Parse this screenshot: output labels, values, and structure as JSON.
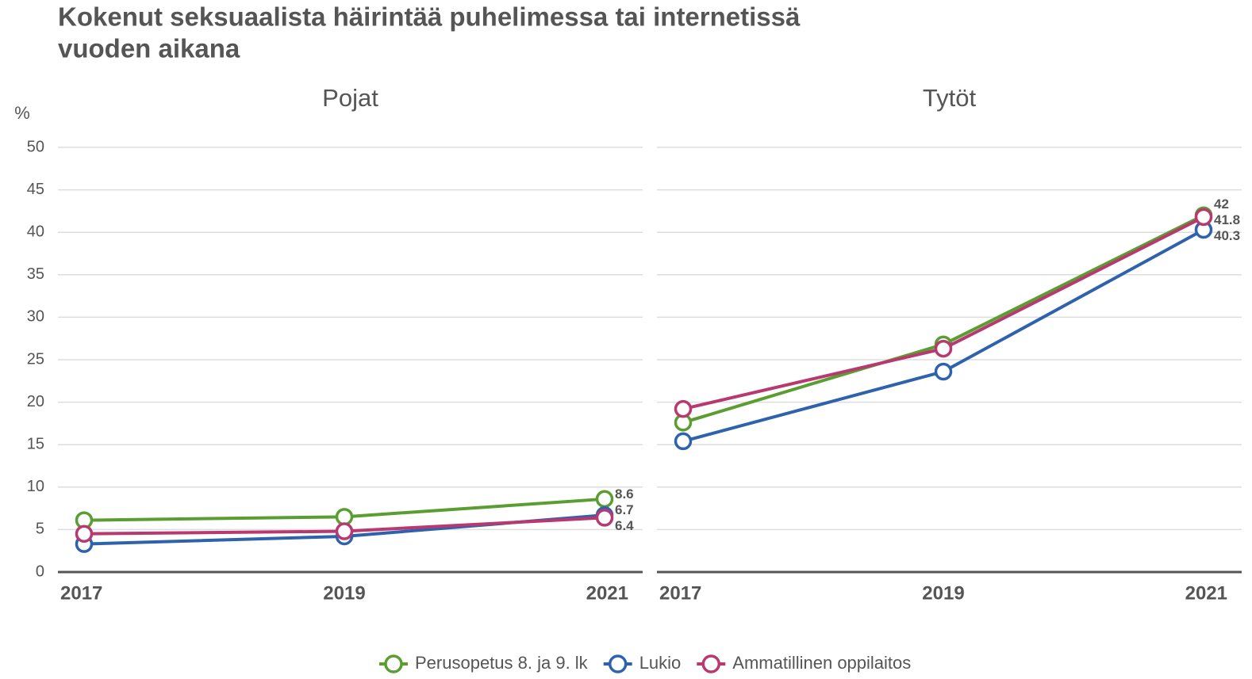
{
  "title": "Kokenut seksuaalista häirintää puhelimessa tai internetissä vuoden aikana",
  "chart_data": {
    "type": "line",
    "y_label": "%",
    "x": [
      2017,
      2019,
      2021
    ],
    "ylim": [
      0,
      50
    ],
    "yticks": [
      0,
      5,
      10,
      15,
      20,
      25,
      30,
      35,
      40,
      45,
      50
    ],
    "grid": true,
    "legend": "bottom",
    "series": [
      {
        "name": "Perusopetus 8. ja 9. lk",
        "color": "#5a9e32"
      },
      {
        "name": "Lukio",
        "color": "#2f62ad"
      },
      {
        "name": "Ammatillinen oppilaitos",
        "color": "#b8396f"
      }
    ],
    "panels": [
      {
        "title": "Pojat",
        "values": [
          [
            6.1,
            6.5,
            8.6
          ],
          [
            3.3,
            4.2,
            6.7
          ],
          [
            4.5,
            4.8,
            6.4
          ]
        ]
      },
      {
        "title": "Tytöt",
        "values": [
          [
            17.6,
            26.8,
            42
          ],
          [
            15.4,
            23.6,
            40.3
          ],
          [
            19.2,
            26.3,
            41.8
          ]
        ]
      }
    ]
  }
}
